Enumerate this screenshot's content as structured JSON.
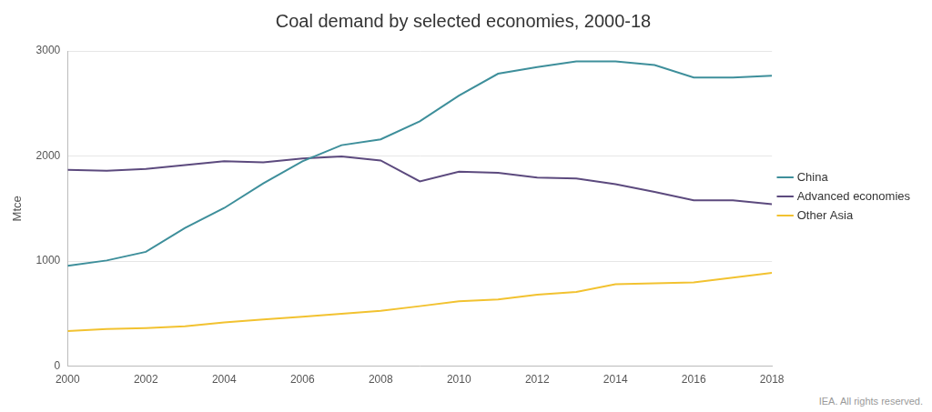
{
  "chart_data": {
    "type": "line",
    "title": "Coal demand by selected economies, 2000-18",
    "y_label": "Mtce",
    "source": "IEA. All rights reserved.",
    "x": [
      2000,
      2001,
      2002,
      2003,
      2004,
      2005,
      2006,
      2007,
      2008,
      2009,
      2010,
      2011,
      2012,
      2013,
      2014,
      2015,
      2016,
      2017,
      2018
    ],
    "xlim": [
      2000,
      2018
    ],
    "xticks": [
      2000,
      2002,
      2004,
      2006,
      2008,
      2010,
      2012,
      2014,
      2016,
      2018
    ],
    "ylim": [
      0,
      3000
    ],
    "yticks": [
      0,
      1000,
      2000,
      3000
    ],
    "grid": "y",
    "legend": "right",
    "series": [
      {
        "name": "China",
        "color": "#3e8f9b",
        "values": [
          955,
          1006,
          1088,
          1315,
          1505,
          1740,
          1950,
          2103,
          2158,
          2330,
          2575,
          2783,
          2847,
          2901,
          2901,
          2865,
          2747,
          2747,
          2765
        ]
      },
      {
        "name": "Advanced economies",
        "color": "#5c4a7e",
        "values": [
          1868,
          1859,
          1877,
          1913,
          1950,
          1940,
          1976,
          1995,
          1958,
          1759,
          1850,
          1840,
          1795,
          1786,
          1732,
          1659,
          1578,
          1578,
          1541
        ]
      },
      {
        "name": "Other Asia",
        "color": "#f2c230",
        "values": [
          335,
          354,
          363,
          380,
          417,
          444,
          471,
          499,
          526,
          571,
          617,
          635,
          680,
          707,
          780,
          789,
          798,
          843,
          889
        ]
      }
    ]
  }
}
